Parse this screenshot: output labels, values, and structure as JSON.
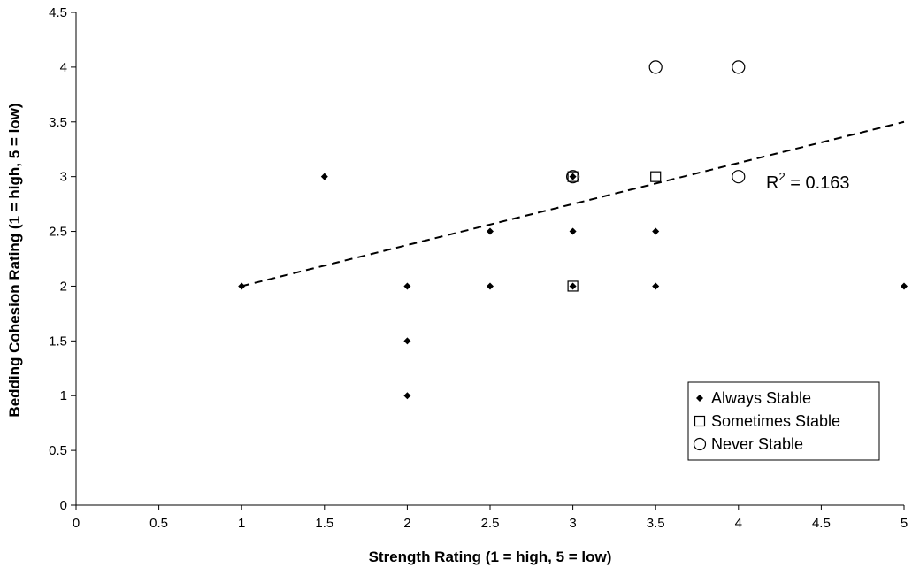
{
  "chart_data": {
    "type": "scatter",
    "title": "",
    "xlabel": "Strength Rating (1 = high, 5 = low)",
    "ylabel": "Bedding Cohesion Rating (1 = high, 5 = low)",
    "xlim": [
      0,
      5
    ],
    "ylim": [
      0,
      4.5
    ],
    "x_ticks": [
      0,
      0.5,
      1,
      1.5,
      2,
      2.5,
      3,
      3.5,
      4,
      4.5,
      5
    ],
    "y_ticks": [
      0,
      0.5,
      1,
      1.5,
      2,
      2.5,
      3,
      3.5,
      4,
      4.5
    ],
    "x_tick_labels": [
      "0",
      "0.5",
      "1",
      "1.5",
      "2",
      "2.5",
      "3",
      "3.5",
      "4",
      "4.5",
      "5"
    ],
    "y_tick_labels": [
      "0",
      "0.5",
      "1",
      "1.5",
      "2",
      "2.5",
      "3",
      "3.5",
      "4",
      "4.5"
    ],
    "grid": false,
    "legend_position": "bottom-right",
    "series": [
      {
        "name": "Always Stable",
        "marker": "diamond-filled",
        "points": [
          [
            1,
            2
          ],
          [
            1.5,
            3
          ],
          [
            2,
            1
          ],
          [
            2,
            1.5
          ],
          [
            2,
            2
          ],
          [
            2.5,
            2
          ],
          [
            2.5,
            2.5
          ],
          [
            3,
            2
          ],
          [
            3,
            2.5
          ],
          [
            3,
            3
          ],
          [
            3.5,
            2
          ],
          [
            3.5,
            2.5
          ],
          [
            5,
            2
          ]
        ]
      },
      {
        "name": "Sometimes Stable",
        "marker": "square-open",
        "points": [
          [
            3,
            2
          ],
          [
            3,
            3
          ],
          [
            3.5,
            3
          ]
        ]
      },
      {
        "name": "Never Stable",
        "marker": "circle-open",
        "points": [
          [
            3,
            3
          ],
          [
            3.5,
            4
          ],
          [
            4,
            4
          ],
          [
            4,
            3
          ]
        ]
      }
    ],
    "trendline": {
      "style": "dashed",
      "x": [
        1,
        5
      ],
      "y": [
        2,
        3.5
      ]
    },
    "annotations": {
      "r2_prefix": "R",
      "r2_superscript": "2",
      "r2_value": " = 0.163"
    }
  }
}
